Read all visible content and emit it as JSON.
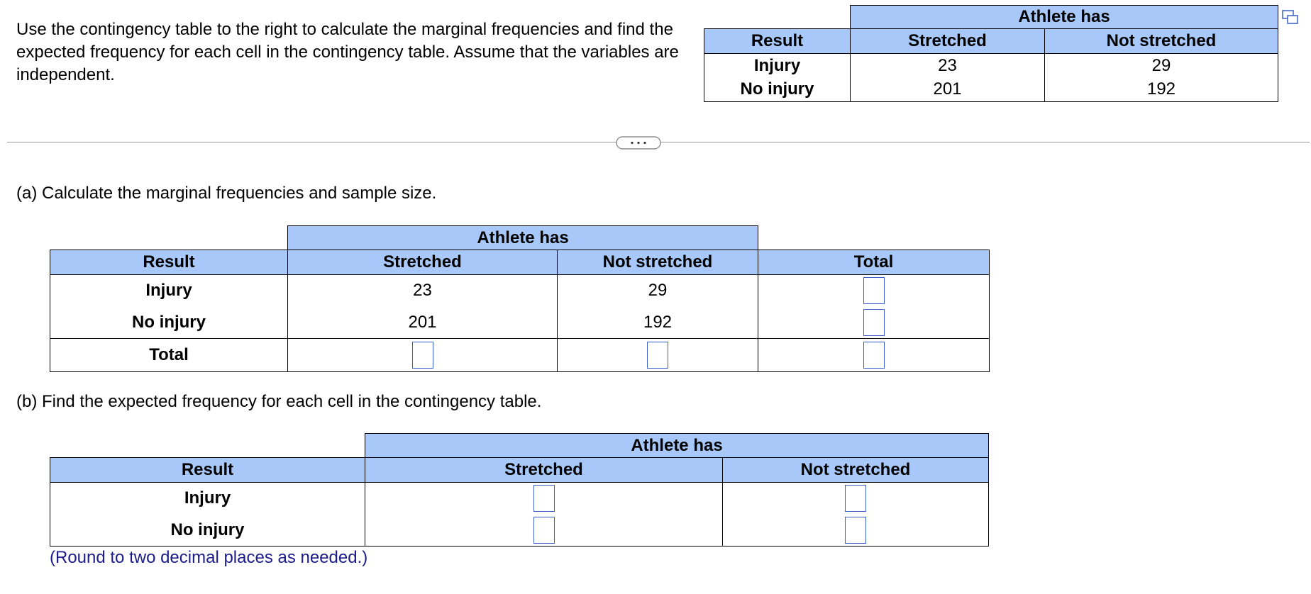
{
  "problem": {
    "text": "Use the contingency table to the right to calculate the marginal frequencies and find the expected frequency for each cell in the contingency table. Assume that the variables are independent."
  },
  "given_table": {
    "group_header": "Athlete has",
    "headers": [
      "Result",
      "Stretched",
      "Not stretched"
    ],
    "rows": [
      [
        "Injury",
        23,
        29
      ],
      [
        "No injury",
        201,
        192
      ]
    ]
  },
  "part_a": {
    "prompt": "(a) Calculate the marginal frequencies and sample size.",
    "table": {
      "group_header": "Athlete has",
      "headers": [
        "Result",
        "Stretched",
        "Not stretched",
        "Total"
      ],
      "rows": [
        [
          "Injury",
          23,
          29
        ],
        [
          "No injury",
          201,
          192
        ]
      ],
      "total_label": "Total"
    }
  },
  "part_b": {
    "prompt": "(b) Find the expected frequency for each cell in the contingency table.",
    "table": {
      "group_header": "Athlete has",
      "headers": [
        "Result",
        "Stretched",
        "Not stretched"
      ],
      "rows": [
        [
          "Injury"
        ],
        [
          "No injury"
        ]
      ]
    },
    "note": "(Round to two decimal places as needed.)"
  }
}
